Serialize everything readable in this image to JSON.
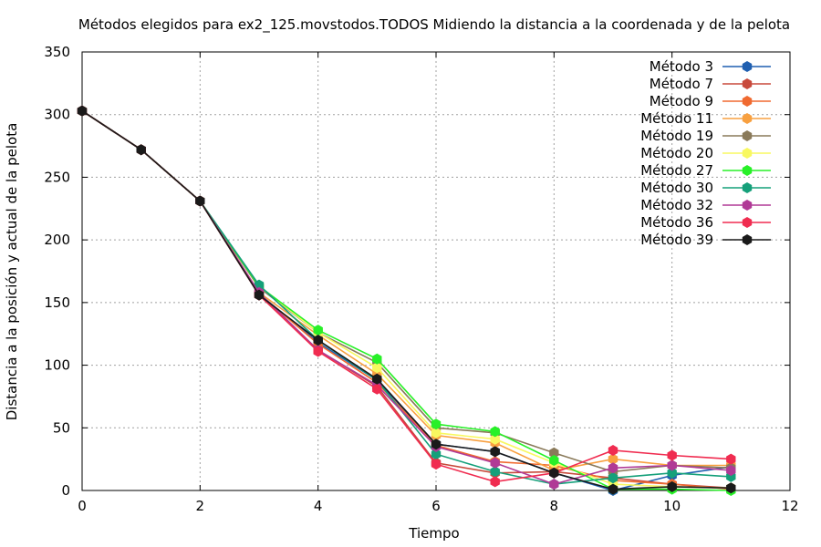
{
  "chart_data": {
    "type": "line",
    "title": "Métodos elegidos para ex2_125.movstodos.TODOS Midiendo la distancia a la coordenada y de la pelota",
    "xlabel": "Tiempo",
    "ylabel": "Distancia a la posición y actual de la pelota",
    "xlim": [
      0,
      12
    ],
    "ylim": [
      0,
      350
    ],
    "xticks": [
      0,
      2,
      4,
      6,
      8,
      10,
      12
    ],
    "yticks": [
      0,
      50,
      100,
      150,
      200,
      250,
      300,
      350
    ],
    "grid": true,
    "legend_position": "top-right",
    "x": [
      0,
      1,
      2,
      3,
      4,
      5,
      6,
      7,
      8,
      9,
      10,
      11
    ],
    "series": [
      {
        "name": "Método 3",
        "color": "#1f5fb0",
        "values": [
          303,
          272,
          231,
          157,
          118,
          88,
          37,
          31,
          14,
          0,
          12,
          19
        ]
      },
      {
        "name": "Método 7",
        "color": "#c84a3c",
        "values": [
          303,
          272,
          231,
          156,
          112,
          83,
          22,
          14,
          15,
          10,
          5,
          2
        ]
      },
      {
        "name": "Método 9",
        "color": "#f06a30",
        "values": [
          303,
          272,
          231,
          157,
          117,
          86,
          36,
          23,
          20,
          8,
          5,
          1
        ]
      },
      {
        "name": "Método 11",
        "color": "#f8a040",
        "values": [
          303,
          272,
          231,
          158,
          124,
          93,
          44,
          38,
          16,
          25,
          20,
          20
        ]
      },
      {
        "name": "Método 19",
        "color": "#8a7a5a",
        "values": [
          303,
          272,
          231,
          162,
          126,
          102,
          50,
          46,
          30,
          15,
          20,
          18
        ]
      },
      {
        "name": "Método 20",
        "color": "#f8f860",
        "values": [
          303,
          272,
          231,
          163,
          126,
          98,
          46,
          41,
          22,
          5,
          3,
          2
        ]
      },
      {
        "name": "Método 27",
        "color": "#28f028",
        "values": [
          303,
          272,
          231,
          163,
          128,
          105,
          53,
          47,
          24,
          1,
          1,
          0
        ]
      },
      {
        "name": "Método 30",
        "color": "#15a07a",
        "values": [
          303,
          272,
          231,
          164,
          120,
          88,
          29,
          15,
          5,
          10,
          14,
          11
        ]
      },
      {
        "name": "Método 32",
        "color": "#b03a96",
        "values": [
          303,
          272,
          231,
          158,
          112,
          84,
          35,
          22,
          5,
          18,
          20,
          16
        ]
      },
      {
        "name": "Método 36",
        "color": "#f02c50",
        "values": [
          303,
          272,
          231,
          156,
          111,
          81,
          21,
          7,
          14,
          32,
          28,
          25
        ]
      },
      {
        "name": "Método 39",
        "color": "#1a1a1a",
        "values": [
          303,
          272,
          231,
          156,
          120,
          89,
          37,
          31,
          14,
          1,
          3,
          2
        ]
      }
    ]
  }
}
